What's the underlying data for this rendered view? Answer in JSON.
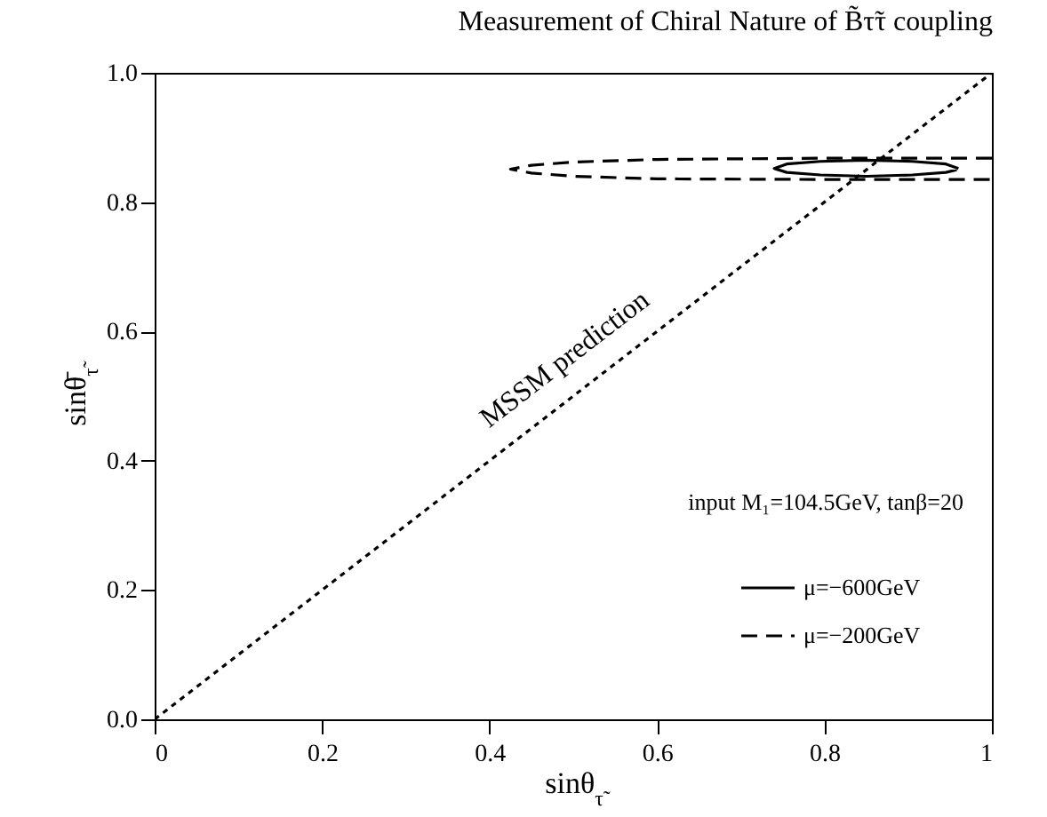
{
  "chart_data": {
    "type": "line",
    "title": "Measurement of Chiral Nature of B̃τ̃τ coupling",
    "xlabel": "sinθ$_{τ̃}$",
    "ylabel": "sinθ̄$_{τ̃}$",
    "xlim": [
      0,
      1
    ],
    "ylim": [
      0,
      1
    ],
    "xticks": [
      0,
      0.2,
      0.4,
      0.6,
      0.8,
      1
    ],
    "yticks": [
      {
        "value": 0,
        "label": "0.0"
      },
      0.2,
      0.4,
      0.6,
      0.8,
      {
        "value": 1,
        "label": "1.0"
      }
    ],
    "grid": false,
    "legend": "bottom right",
    "marker": "none",
    "series": [
      {
        "name": "μ=−600GeV",
        "color": "#000000",
        "line_style": "solid",
        "x": [
          0.96,
          0.945,
          0.905,
          0.85,
          0.795,
          0.755,
          0.74,
          0.755,
          0.795,
          0.85,
          0.905,
          0.945,
          0.958
        ],
        "values": [
          0.852,
          0.859,
          0.863,
          0.865,
          0.863,
          0.859,
          0.852,
          0.846,
          0.842,
          0.84,
          0.842,
          0.846,
          0.85
        ]
      },
      {
        "name": "μ=−200GeV",
        "color": "#000000",
        "line_style": "dashed",
        "x": [
          1,
          0.8,
          0.6,
          0.5,
          0.45,
          0.425,
          0.45,
          0.5,
          0.6,
          0.8,
          1
        ],
        "values": [
          0.868,
          0.868,
          0.866,
          0.862,
          0.857,
          0.851,
          0.845,
          0.84,
          0.836,
          0.835,
          0.835
        ]
      },
      {
        "color": "#000000",
        "line_style": "dotted",
        "x": [
          0,
          1
        ],
        "values": [
          0,
          1
        ]
      }
    ],
    "annotations": [
      "MSSM prediction",
      "input M₁=104.5GeV, tanβ=20"
    ]
  }
}
